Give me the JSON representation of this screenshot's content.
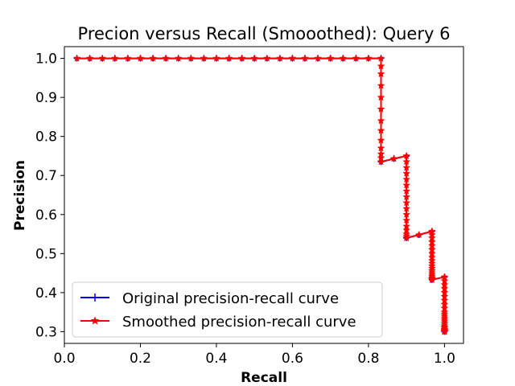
{
  "chart_data": {
    "type": "line",
    "title": "Precion versus Recall (Smooothed): Query 6",
    "xlabel": "Recall",
    "ylabel": "Precision",
    "xlim": [
      0.0,
      1.05
    ],
    "ylim": [
      0.27,
      1.03
    ],
    "xticks": [
      0.0,
      0.2,
      0.4,
      0.6,
      0.8,
      1.0
    ],
    "xtick_labels": [
      "0.0",
      "0.2",
      "0.4",
      "0.6",
      "0.8",
      "1.0"
    ],
    "yticks": [
      0.3,
      0.4,
      0.5,
      0.6,
      0.7,
      0.8,
      0.9,
      1.0
    ],
    "ytick_labels": [
      "0.3",
      "0.4",
      "0.5",
      "0.6",
      "0.7",
      "0.8",
      "0.9",
      "1.0"
    ],
    "grid": false,
    "legend_position": "lower-left",
    "series": [
      {
        "name": "Original precision-recall curve",
        "color": "#0000ff",
        "marker": "plus",
        "x": [
          0.033,
          0.067,
          0.1,
          0.133,
          0.167,
          0.2,
          0.233,
          0.267,
          0.3,
          0.333,
          0.367,
          0.4,
          0.433,
          0.467,
          0.5,
          0.533,
          0.567,
          0.6,
          0.633,
          0.667,
          0.7,
          0.733,
          0.767,
          0.8,
          0.833,
          0.833,
          0.867,
          0.9,
          0.9,
          0.933,
          0.967,
          0.967,
          1.0,
          1.0
        ],
        "y": [
          1.0,
          1.0,
          1.0,
          1.0,
          1.0,
          1.0,
          1.0,
          1.0,
          1.0,
          1.0,
          1.0,
          1.0,
          1.0,
          1.0,
          1.0,
          1.0,
          1.0,
          1.0,
          1.0,
          1.0,
          1.0,
          1.0,
          1.0,
          1.0,
          1.0,
          0.735,
          0.743,
          0.75,
          0.54,
          0.548,
          0.557,
          0.433,
          0.44,
          0.3
        ]
      },
      {
        "name": "Smoothed precision-recall curve",
        "color": "#ff0000",
        "marker": "star",
        "x": [
          0.033,
          0.067,
          0.1,
          0.133,
          0.167,
          0.2,
          0.233,
          0.267,
          0.3,
          0.333,
          0.367,
          0.4,
          0.433,
          0.467,
          0.5,
          0.533,
          0.567,
          0.6,
          0.633,
          0.667,
          0.7,
          0.733,
          0.767,
          0.8,
          0.833,
          0.833,
          0.833,
          0.833,
          0.833,
          0.833,
          0.833,
          0.833,
          0.833,
          0.833,
          0.833,
          0.833,
          0.833,
          0.867,
          0.9,
          0.9,
          0.9,
          0.9,
          0.9,
          0.9,
          0.9,
          0.9,
          0.9,
          0.9,
          0.9,
          0.9,
          0.9,
          0.9,
          0.9,
          0.9,
          0.9,
          0.9,
          0.933,
          0.967,
          0.967,
          0.967,
          0.967,
          0.967,
          0.967,
          0.967,
          0.967,
          0.967,
          0.967,
          0.967,
          0.967,
          0.967,
          0.967,
          0.967,
          0.967,
          0.967,
          0.967,
          0.967,
          0.967,
          0.967,
          1.0,
          1.0,
          1.0,
          1.0,
          1.0,
          1.0,
          1.0,
          1.0,
          1.0,
          1.0,
          1.0,
          1.0,
          1.0,
          1.0,
          1.0,
          1.0,
          1.0,
          1.0,
          1.0,
          1.0,
          1.0,
          1.0,
          1.0,
          1.0,
          1.0,
          1.0,
          1.0,
          1.0,
          1.0
        ],
        "y": [
          1.0,
          1.0,
          1.0,
          1.0,
          1.0,
          1.0,
          1.0,
          1.0,
          1.0,
          1.0,
          1.0,
          1.0,
          1.0,
          1.0,
          1.0,
          1.0,
          1.0,
          1.0,
          1.0,
          1.0,
          1.0,
          1.0,
          1.0,
          1.0,
          1.0,
          0.98,
          0.96,
          0.93,
          0.9,
          0.87,
          0.84,
          0.815,
          0.79,
          0.77,
          0.755,
          0.745,
          0.735,
          0.743,
          0.75,
          0.735,
          0.72,
          0.705,
          0.69,
          0.675,
          0.66,
          0.645,
          0.63,
          0.615,
          0.6,
          0.585,
          0.57,
          0.56,
          0.55,
          0.545,
          0.54,
          0.54,
          0.548,
          0.557,
          0.548,
          0.54,
          0.53,
          0.52,
          0.51,
          0.5,
          0.49,
          0.482,
          0.475,
          0.468,
          0.462,
          0.456,
          0.451,
          0.446,
          0.442,
          0.438,
          0.435,
          0.433,
          0.433,
          0.433,
          0.44,
          0.43,
          0.42,
          0.41,
          0.4,
          0.39,
          0.38,
          0.37,
          0.36,
          0.35,
          0.345,
          0.34,
          0.335,
          0.33,
          0.325,
          0.32,
          0.315,
          0.312,
          0.309,
          0.306,
          0.304,
          0.302,
          0.301,
          0.3,
          0.3,
          0.3,
          0.3,
          0.3,
          0.3
        ]
      }
    ]
  }
}
